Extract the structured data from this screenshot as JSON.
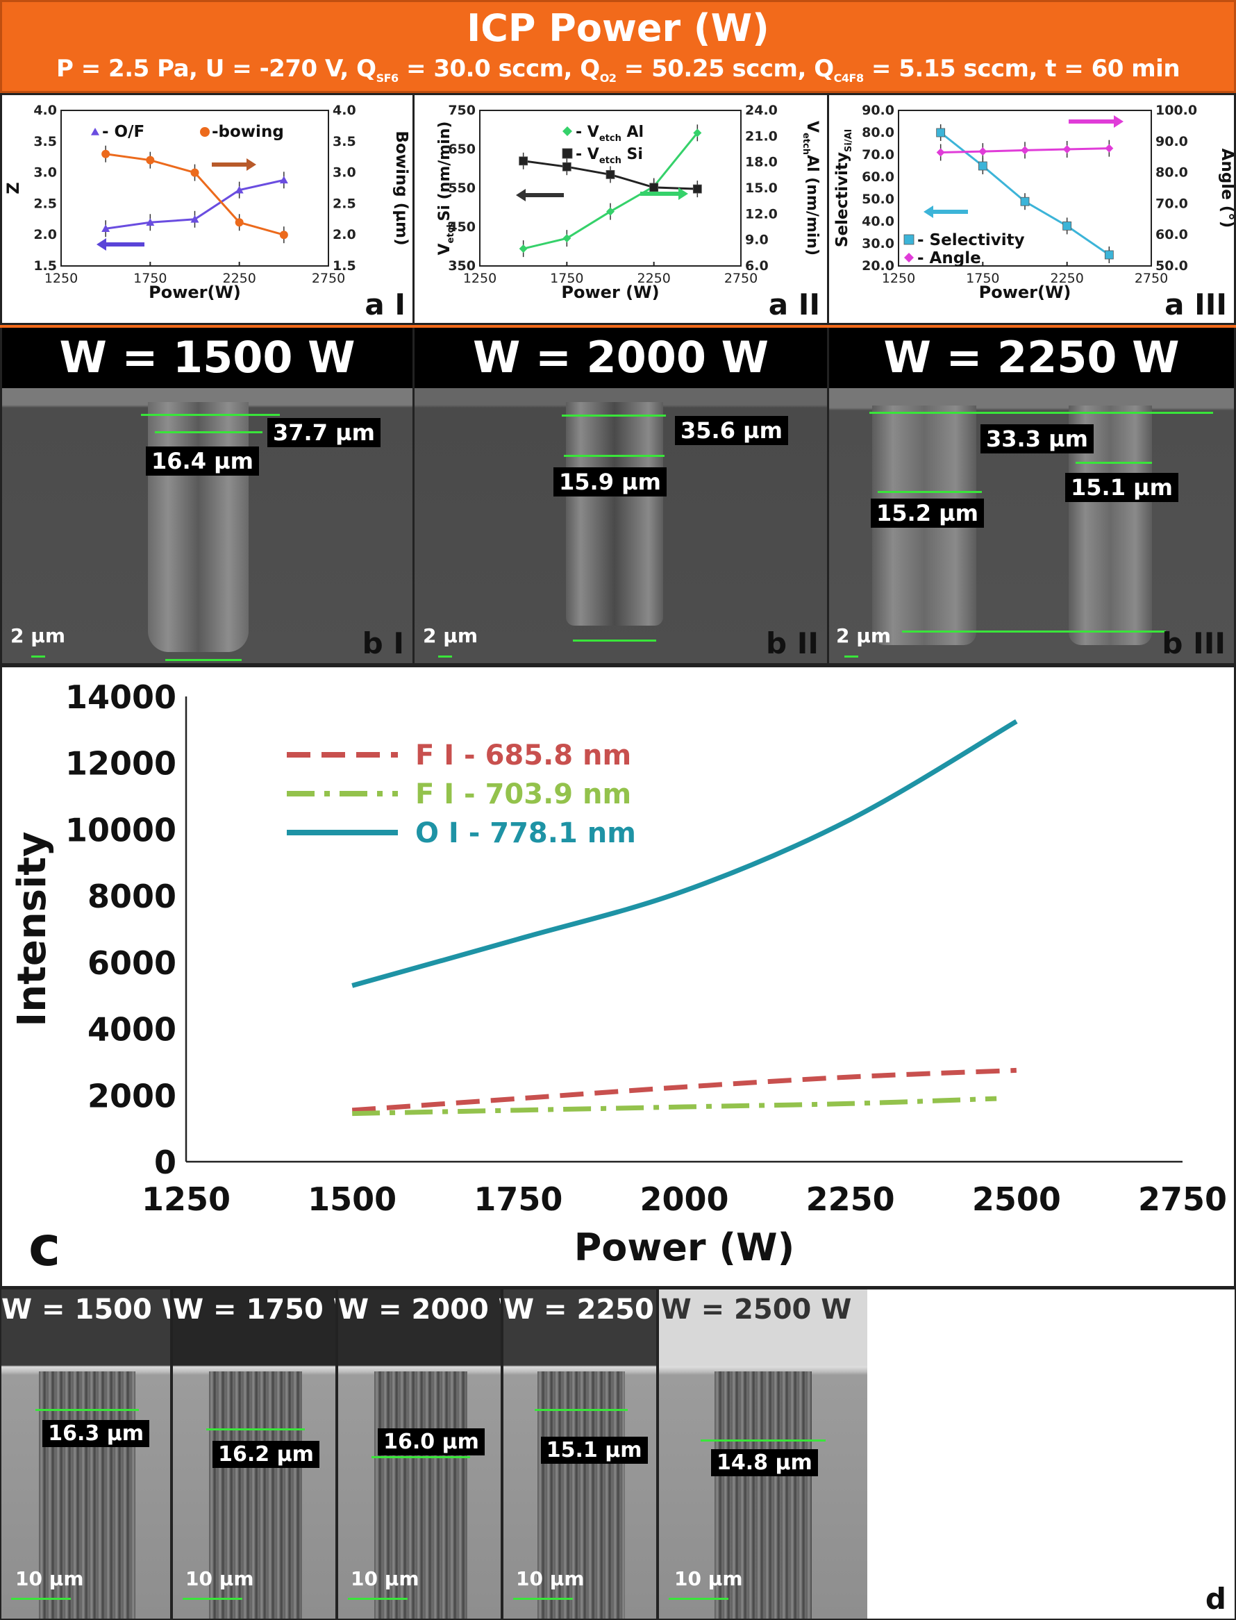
{
  "header": {
    "title": "ICP Power (W)",
    "conditions": {
      "p": "P = 2.5 Pa, U = -270 V, Q",
      "sf6_sub": "SF6",
      "sf6_val": " = 30.0 sccm, Q",
      "o2_sub": "O2",
      "o2_val": " = 50.25 sccm, Q",
      "c4f8_sub": "C4F8",
      "c4f8_val": " = 5.15 sccm, t = 60 min"
    }
  },
  "panel_labels": {
    "a1": "a I",
    "a2": "a II",
    "a3": "a III",
    "b1": "b I",
    "b2": "b II",
    "b3": "b III",
    "c": "c",
    "d": "d"
  },
  "sem_b": [
    {
      "banner": "W = 1500 W",
      "labels": [
        "37.7 µm",
        "16.4 µm"
      ],
      "scalebar": "2 µm"
    },
    {
      "banner": "W = 2000 W",
      "labels": [
        "35.6 µm",
        "15.9 µm"
      ],
      "scalebar": "2 µm"
    },
    {
      "banner": "W = 2250 W",
      "labels": [
        "33.3 µm",
        "15.2 µm",
        "15.1 µm"
      ],
      "scalebar": "2 µm"
    }
  ],
  "sem_d": [
    {
      "banner": "W = 1500 W",
      "label": "16.3 µm",
      "scalebar": "10 µm"
    },
    {
      "banner": "W = 1750 W",
      "label": "16.2 µm",
      "scalebar": "10 µm"
    },
    {
      "banner": "W = 2000 W",
      "label": "16.0 µm",
      "scalebar": "10 µm"
    },
    {
      "banner": "W = 2250 W",
      "label": "15.1 µm",
      "scalebar": "10 µm"
    },
    {
      "banner": "W = 2500 W",
      "label": "14.8 µm",
      "scalebar": "10 µm"
    }
  ],
  "chart_data": [
    {
      "id": "aI",
      "type": "line",
      "xlabel": "Power(W)",
      "ylabel": "Z",
      "y2label": "Bowing (µm)",
      "xlim": [
        1250,
        2750
      ],
      "xticks": [
        1250,
        1750,
        2250,
        2750
      ],
      "ylim": [
        1.5,
        4.0
      ],
      "yticks": [
        "1.5",
        "2.0",
        "2.5",
        "3.0",
        "3.5",
        "4.0"
      ],
      "y2lim": [
        1.5,
        4.0
      ],
      "y2ticks": [
        "1.5",
        "2.0",
        "2.5",
        "3.0",
        "3.5",
        "4.0"
      ],
      "x": [
        1500,
        1750,
        2000,
        2250,
        2500
      ],
      "series": [
        {
          "name": "- O/F",
          "axis": "left",
          "color": "#6a4de0",
          "marker": "triangle",
          "values": [
            2.1,
            2.2,
            2.25,
            2.72,
            2.88
          ]
        },
        {
          "name": "-bowing",
          "axis": "right",
          "color": "#ec6a1c",
          "marker": "circle",
          "values": [
            3.3,
            3.2,
            3.0,
            2.2,
            2.0
          ]
        }
      ]
    },
    {
      "id": "aII",
      "type": "line",
      "xlabel": "Power (W)",
      "ylabel": "Si (nm/min)",
      "y2label": "Al (nm/min)",
      "xlim": [
        1250,
        2750
      ],
      "xticks": [
        1250,
        1750,
        2250,
        2750
      ],
      "ylim": [
        350,
        750
      ],
      "yticks": [
        "350",
        "450",
        "550",
        "650",
        "750"
      ],
      "y2lim": [
        6.0,
        24.0
      ],
      "y2ticks": [
        "6.0",
        "9.0",
        "12.0",
        "15.0",
        "18.0",
        "21.0",
        "24.0"
      ],
      "x": [
        1500,
        1750,
        2000,
        2250,
        2500
      ],
      "series": [
        {
          "name": "Al",
          "axis": "right",
          "color": "#35d16a",
          "marker": "diamond",
          "values": [
            8.0,
            9.2,
            12.3,
            15.2,
            21.4
          ]
        },
        {
          "name": "Si",
          "axis": "left",
          "color": "#222222",
          "marker": "square",
          "values": [
            620,
            605,
            585,
            552,
            548
          ]
        }
      ]
    },
    {
      "id": "aIII",
      "type": "line",
      "xlabel": "Power(W)",
      "ylabel": "Selectivity",
      "ylabel_sub": "Si/Al",
      "y2label": "Angle (°)",
      "xlim": [
        1250,
        2750
      ],
      "xticks": [
        1250,
        1750,
        2250,
        2750
      ],
      "ylim": [
        20,
        90
      ],
      "yticks": [
        "20.0",
        "30.0",
        "40.0",
        "50.0",
        "60.0",
        "70.0",
        "80.0",
        "90.0"
      ],
      "y2lim": [
        50,
        100
      ],
      "y2ticks": [
        "50.0",
        "60.0",
        "70.0",
        "80.0",
        "90.0",
        "100.0"
      ],
      "x": [
        1500,
        1750,
        2000,
        2250,
        2500
      ],
      "series": [
        {
          "name": "- Selectivity",
          "axis": "left",
          "color": "#3cb4d8",
          "marker": "square",
          "values": [
            80,
            65,
            49,
            38,
            25
          ]
        },
        {
          "name": "- Angle",
          "axis": "right",
          "color": "#e03cd8",
          "marker": "diamond",
          "values": [
            86.5,
            86.8,
            87.2,
            87.5,
            87.8
          ]
        }
      ]
    },
    {
      "id": "c",
      "type": "line",
      "xlabel": "Power (W)",
      "ylabel": "Intensity",
      "xlim": [
        1250,
        2750
      ],
      "xticks": [
        1250,
        1500,
        1750,
        2000,
        2250,
        2500,
        2750
      ],
      "ylim": [
        0,
        14000
      ],
      "yticks": [
        0,
        2000,
        4000,
        6000,
        8000,
        10000,
        12000,
        14000
      ],
      "x": [
        1500,
        1750,
        2000,
        2250,
        2500
      ],
      "series": [
        {
          "name": "F I - 685.8 nm",
          "color": "#c8504e",
          "dash": "dash",
          "values": [
            1550,
            1900,
            2250,
            2550,
            2750
          ]
        },
        {
          "name": "F I - 703.9 nm",
          "color": "#93c24c",
          "dash": "dashdot",
          "values": [
            1450,
            1550,
            1650,
            1750,
            1900
          ],
          "x": [
            1500,
            1750,
            2000,
            2250,
            2470
          ]
        },
        {
          "name": "O I - 778.1 nm",
          "color": "#1e93a5",
          "dash": "solid",
          "values": [
            5300,
            6700,
            8150,
            10300,
            13250
          ]
        }
      ]
    }
  ]
}
